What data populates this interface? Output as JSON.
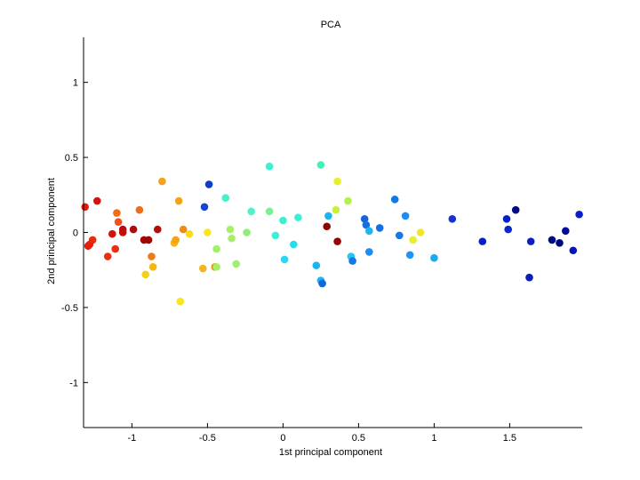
{
  "chart_data": {
    "type": "scatter",
    "title": "PCA",
    "xlabel": "1st principal component",
    "ylabel": "2nd principal component",
    "xlim": [
      -1.32,
      1.98
    ],
    "ylim": [
      -1.3,
      1.3
    ],
    "xticks": [
      -1,
      -0.5,
      0,
      0.5,
      1,
      1.5
    ],
    "xtick_labels": [
      "-1",
      "-0.5",
      "0",
      "0.5",
      "1",
      "1.5"
    ],
    "yticks": [
      -1,
      -0.5,
      0,
      0.5,
      1
    ],
    "ytick_labels": [
      "-1",
      "-0.5",
      "0",
      "0.5",
      "1"
    ],
    "grid": false,
    "box": "left-bottom",
    "colormap": "jet",
    "points": [
      {
        "x": -1.31,
        "y": 0.17,
        "c": "#e01a0f"
      },
      {
        "x": -1.29,
        "y": -0.09,
        "c": "#e01a0f"
      },
      {
        "x": -1.28,
        "y": -0.08,
        "c": "#e61e0f"
      },
      {
        "x": -1.26,
        "y": -0.05,
        "c": "#e82a10"
      },
      {
        "x": -1.23,
        "y": 0.21,
        "c": "#d4150f"
      },
      {
        "x": -1.16,
        "y": -0.16,
        "c": "#e8320f"
      },
      {
        "x": -1.13,
        "y": -0.01,
        "c": "#d0130f"
      },
      {
        "x": -1.11,
        "y": -0.11,
        "c": "#e8300f"
      },
      {
        "x": -1.1,
        "y": 0.13,
        "c": "#f06d14"
      },
      {
        "x": -1.09,
        "y": 0.07,
        "c": "#f0501a"
      },
      {
        "x": -1.06,
        "y": 0.02,
        "c": "#b80b0b"
      },
      {
        "x": -1.06,
        "y": 0.0,
        "c": "#c20d0d"
      },
      {
        "x": -0.99,
        "y": 0.02,
        "c": "#b00a0a"
      },
      {
        "x": -0.95,
        "y": 0.15,
        "c": "#f06e1a"
      },
      {
        "x": -0.92,
        "y": -0.05,
        "c": "#a50505"
      },
      {
        "x": -0.91,
        "y": -0.28,
        "c": "#f0d21e"
      },
      {
        "x": -0.89,
        "y": -0.05,
        "c": "#a00505"
      },
      {
        "x": -0.87,
        "y": -0.16,
        "c": "#f07a14"
      },
      {
        "x": -0.86,
        "y": -0.23,
        "c": "#f5b50f"
      },
      {
        "x": -0.83,
        "y": 0.02,
        "c": "#b0100a"
      },
      {
        "x": -0.8,
        "y": 0.34,
        "c": "#f5a01e"
      },
      {
        "x": -0.72,
        "y": -0.07,
        "c": "#f5b41e"
      },
      {
        "x": -0.71,
        "y": -0.05,
        "c": "#f5a514"
      },
      {
        "x": -0.69,
        "y": 0.21,
        "c": "#f5a514"
      },
      {
        "x": -0.68,
        "y": -0.46,
        "c": "#f8e61e"
      },
      {
        "x": -0.66,
        "y": 0.02,
        "c": "#f08c14"
      },
      {
        "x": -0.62,
        "y": -0.01,
        "c": "#f8dc1e"
      },
      {
        "x": -0.53,
        "y": -0.24,
        "c": "#f5b41e"
      },
      {
        "x": -0.52,
        "y": 0.17,
        "c": "#1446d2"
      },
      {
        "x": -0.5,
        "y": 0.0,
        "c": "#f8e61e"
      },
      {
        "x": -0.49,
        "y": 0.32,
        "c": "#0f3cc8"
      },
      {
        "x": -0.45,
        "y": -0.23,
        "c": "#f08c14"
      },
      {
        "x": -0.44,
        "y": -0.23,
        "c": "#a5f064"
      },
      {
        "x": -0.44,
        "y": -0.11,
        "c": "#a0f06e"
      },
      {
        "x": -0.38,
        "y": 0.23,
        "c": "#46f0c8"
      },
      {
        "x": -0.35,
        "y": 0.02,
        "c": "#aaf064"
      },
      {
        "x": -0.34,
        "y": -0.04,
        "c": "#a5f064"
      },
      {
        "x": -0.31,
        "y": -0.21,
        "c": "#a0f06e"
      },
      {
        "x": -0.24,
        "y": 0.0,
        "c": "#8cf078"
      },
      {
        "x": -0.21,
        "y": 0.14,
        "c": "#50f0c8"
      },
      {
        "x": -0.09,
        "y": 0.44,
        "c": "#3cf0d2"
      },
      {
        "x": -0.09,
        "y": 0.14,
        "c": "#78f096"
      },
      {
        "x": -0.05,
        "y": -0.02,
        "c": "#3cf0d7"
      },
      {
        "x": 0.0,
        "y": 0.08,
        "c": "#3cf0d2"
      },
      {
        "x": 0.01,
        "y": -0.18,
        "c": "#28d7f0"
      },
      {
        "x": 0.07,
        "y": -0.08,
        "c": "#28dcf0"
      },
      {
        "x": 0.1,
        "y": 0.1,
        "c": "#3cf0d2"
      },
      {
        "x": 0.22,
        "y": -0.22,
        "c": "#1eb4f0"
      },
      {
        "x": 0.25,
        "y": -0.32,
        "c": "#1eb4f0"
      },
      {
        "x": 0.25,
        "y": 0.45,
        "c": "#46f0b4"
      },
      {
        "x": 0.26,
        "y": -0.34,
        "c": "#1464dc"
      },
      {
        "x": 0.29,
        "y": 0.04,
        "c": "#8c0505"
      },
      {
        "x": 0.3,
        "y": 0.11,
        "c": "#1eb4f0"
      },
      {
        "x": 0.35,
        "y": 0.15,
        "c": "#c8f03c"
      },
      {
        "x": 0.36,
        "y": 0.34,
        "c": "#e6f028"
      },
      {
        "x": 0.36,
        "y": -0.06,
        "c": "#960505"
      },
      {
        "x": 0.43,
        "y": 0.21,
        "c": "#b4f050"
      },
      {
        "x": 0.45,
        "y": -0.16,
        "c": "#1ec8f0"
      },
      {
        "x": 0.46,
        "y": -0.19,
        "c": "#1478e6"
      },
      {
        "x": 0.54,
        "y": 0.09,
        "c": "#1464dc"
      },
      {
        "x": 0.55,
        "y": 0.05,
        "c": "#1470e0"
      },
      {
        "x": 0.57,
        "y": 0.01,
        "c": "#1eb4f0"
      },
      {
        "x": 0.57,
        "y": -0.13,
        "c": "#1e8cf0"
      },
      {
        "x": 0.64,
        "y": 0.03,
        "c": "#1470e0"
      },
      {
        "x": 0.74,
        "y": 0.22,
        "c": "#1478e6"
      },
      {
        "x": 0.77,
        "y": -0.02,
        "c": "#1478e6"
      },
      {
        "x": 0.81,
        "y": 0.11,
        "c": "#1e8cf0"
      },
      {
        "x": 0.84,
        "y": -0.15,
        "c": "#1e96f0"
      },
      {
        "x": 0.86,
        "y": -0.05,
        "c": "#e6f028"
      },
      {
        "x": 0.91,
        "y": 0.0,
        "c": "#f0e628"
      },
      {
        "x": 1.0,
        "y": -0.17,
        "c": "#1eaaf0"
      },
      {
        "x": 1.12,
        "y": 0.09,
        "c": "#1432d2"
      },
      {
        "x": 1.32,
        "y": -0.06,
        "c": "#0a1ec8"
      },
      {
        "x": 1.48,
        "y": 0.09,
        "c": "#0a1ec8"
      },
      {
        "x": 1.49,
        "y": 0.02,
        "c": "#0a28c8"
      },
      {
        "x": 1.54,
        "y": 0.15,
        "c": "#000a8c"
      },
      {
        "x": 1.63,
        "y": -0.3,
        "c": "#0a1eb4"
      },
      {
        "x": 1.64,
        "y": -0.06,
        "c": "#0a1ec8"
      },
      {
        "x": 1.78,
        "y": -0.05,
        "c": "#000a82"
      },
      {
        "x": 1.83,
        "y": -0.07,
        "c": "#00087a"
      },
      {
        "x": 1.87,
        "y": 0.01,
        "c": "#000c96"
      },
      {
        "x": 1.92,
        "y": -0.12,
        "c": "#0a14b4"
      },
      {
        "x": 1.96,
        "y": 0.12,
        "c": "#0a1ec8"
      }
    ]
  }
}
